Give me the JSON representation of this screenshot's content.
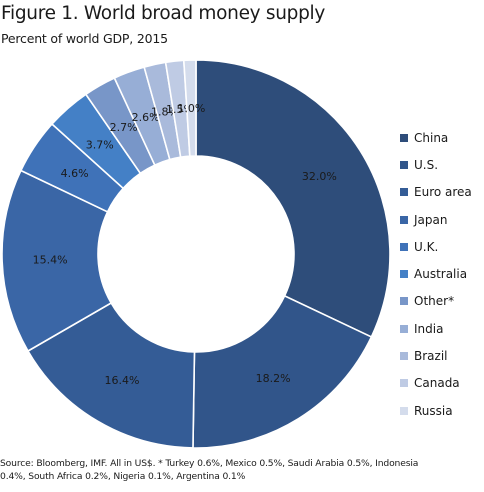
{
  "title": "Figure 1. World broad money supply",
  "subtitle": "Percent of world GDP, 2015",
  "source_lines": [
    "Source: Bloomberg, IMF. All in US$. * Turkey 0.6%, Mexico 0.5%, Saudi Arabia 0.5%, Indonesia",
    "0.4%, South Africa  0.2%, Nigeria 0.1%, Argentina 0.1%"
  ],
  "chart_data": {
    "type": "pie",
    "donut": true,
    "title": "Figure 1. World broad money supply",
    "subtitle": "Percent of world GDP, 2015",
    "legend_position": "right",
    "slices": [
      {
        "name": "China",
        "value": 32.0,
        "label": "32.0%",
        "color": "#2e4d7a"
      },
      {
        "name": "U.S.",
        "value": 18.2,
        "label": "18.2%",
        "color": "#31558a"
      },
      {
        "name": "Euro area",
        "value": 16.4,
        "label": "16.4%",
        "color": "#345c96"
      },
      {
        "name": "Japan",
        "value": 15.4,
        "label": "15.4%",
        "color": "#3a66a6"
      },
      {
        "name": "U.K.",
        "value": 4.6,
        "label": "4.6%",
        "color": "#3f72b8"
      },
      {
        "name": "Australia",
        "value": 3.7,
        "label": "3.7%",
        "color": "#4480c6"
      },
      {
        "name": "Other*",
        "value": 2.7,
        "label": "2.7%",
        "color": "#7896c8"
      },
      {
        "name": "India",
        "value": 2.6,
        "label": "2.6%",
        "color": "#97aed6"
      },
      {
        "name": "Brazil",
        "value": 1.8,
        "label": "1.8%",
        "color": "#a9badb"
      },
      {
        "name": "Canada",
        "value": 1.5,
        "label": "1.5%",
        "color": "#bfcbe4"
      },
      {
        "name": "Russia",
        "value": 1.0,
        "label": "1.0%",
        "color": "#d4dcec"
      }
    ]
  }
}
